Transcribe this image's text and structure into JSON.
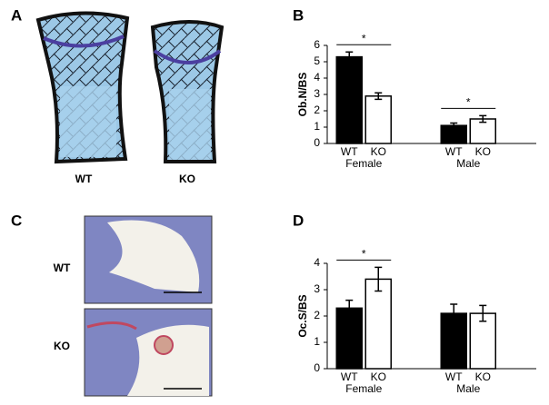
{
  "panels": {
    "labels": [
      "A",
      "B",
      "C",
      "D"
    ],
    "image_a_labels": [
      "WT",
      "KO"
    ],
    "image_c_labels": [
      "WT",
      "KO"
    ]
  },
  "chart_data": [
    {
      "type": "bar",
      "ylabel": "Ob.N/BS",
      "categories": [
        "Female",
        "Male"
      ],
      "series": [
        {
          "name": "WT",
          "color": "#000000",
          "values": [
            5.3,
            1.1
          ],
          "errors": [
            0.3,
            0.15
          ]
        },
        {
          "name": "KO",
          "color": "#ffffff",
          "values": [
            2.9,
            1.5
          ],
          "errors": [
            0.2,
            0.2
          ]
        }
      ],
      "significance": [
        "*",
        "*"
      ],
      "ylim": [
        0,
        6
      ],
      "yticks": [
        0,
        1,
        2,
        3,
        4,
        5,
        6
      ],
      "grid": false
    },
    {
      "type": "bar",
      "ylabel": "Oc.S/BS",
      "categories": [
        "Female",
        "Male"
      ],
      "series": [
        {
          "name": "WT",
          "color": "#000000",
          "values": [
            2.3,
            2.1
          ],
          "errors": [
            0.3,
            0.35
          ]
        },
        {
          "name": "KO",
          "color": "#ffffff",
          "values": [
            3.4,
            2.1
          ],
          "errors": [
            0.45,
            0.3
          ]
        }
      ],
      "significance": [
        "*",
        null
      ],
      "ylim": [
        0,
        4
      ],
      "yticks": [
        0,
        1,
        2,
        3,
        4
      ],
      "grid": false
    }
  ]
}
